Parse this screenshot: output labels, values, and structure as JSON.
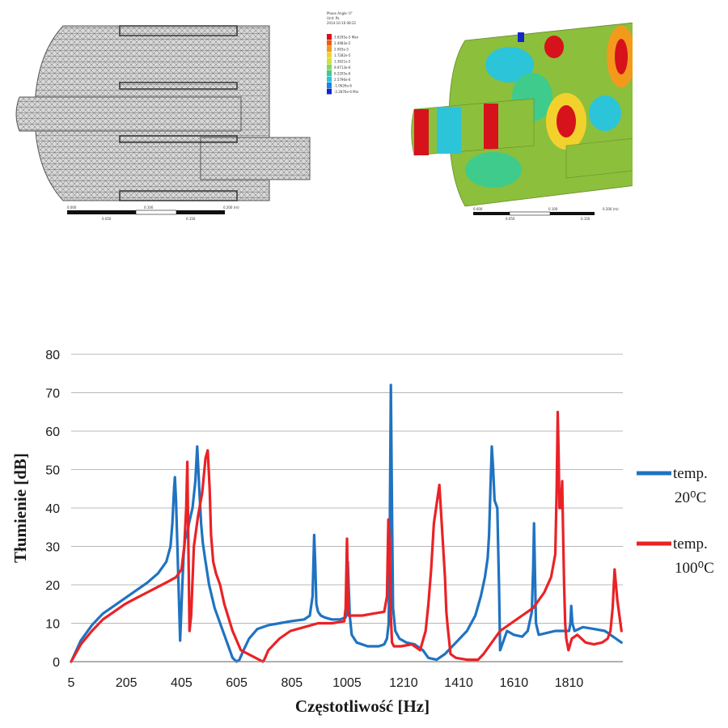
{
  "figure_mesh": {
    "scale_labels": [
      "0.000",
      "0.100",
      "0.200 (m)",
      "0.050",
      "0.150"
    ]
  },
  "figure_result": {
    "header_lines": [
      "Phase Angle: 0°",
      "Unit: Pa",
      "2014-10-16 08:22"
    ],
    "legend_levels": [
      "3.6295e-5 Max",
      "2.4983e-5",
      "2.093e-5",
      "1.7282e-5",
      "1.3621e-5",
      "9.9713e-6",
      "6.2205e-6",
      "2.5796e-6",
      "-1.0626e-6",
      "-2.2876e-6 Min"
    ],
    "legend_colors": [
      "#d6121b",
      "#ef5a16",
      "#f39a1c",
      "#f3d12c",
      "#cfe046",
      "#8fd455",
      "#3fcb8c",
      "#2cc4d8",
      "#1a86e0",
      "#1526c9"
    ],
    "scale_labels": [
      "0.000",
      "0.100",
      "0.200 (m)",
      "0.050",
      "0.150"
    ]
  },
  "chart_data": {
    "type": "line",
    "xlabel": "Częstotliwość [Hz]",
    "ylabel": "Tłumienie [dB]",
    "xlim": [
      5,
      2005
    ],
    "ylim": [
      0,
      80
    ],
    "x_ticks": [
      5,
      205,
      405,
      605,
      805,
      1005,
      1210,
      1410,
      1610,
      1810
    ],
    "y_ticks": [
      0,
      10,
      20,
      30,
      40,
      50,
      60,
      70,
      80
    ],
    "grid": "horizontal",
    "legend_position": "right",
    "series": [
      {
        "name": "temp. 20⁰C",
        "color": "#1f73c1",
        "x": [
          5,
          40,
          80,
          120,
          160,
          200,
          240,
          280,
          320,
          350,
          365,
          372,
          378,
          381,
          385,
          390,
          400,
          408,
          413,
          418,
          425,
          432,
          445,
          455,
          462,
          470,
          476,
          482,
          490,
          505,
          525,
          545,
          570,
          590,
          605,
          615,
          630,
          650,
          680,
          720,
          760,
          800,
          850,
          870,
          880,
          886,
          890,
          894,
          900,
          910,
          925,
          950,
          980,
          1000,
          1005,
          1008,
          1011,
          1015,
          1022,
          1040,
          1080,
          1120,
          1140,
          1150,
          1156,
          1160,
          1164,
          1168,
          1172,
          1180,
          1195,
          1220,
          1250,
          1280,
          1300,
          1330,
          1360,
          1400,
          1440,
          1470,
          1490,
          1505,
          1515,
          1520,
          1525,
          1530,
          1535,
          1540,
          1550,
          1556,
          1560,
          1570,
          1585,
          1610,
          1640,
          1660,
          1675,
          1680,
          1683,
          1686,
          1690,
          1700,
          1730,
          1760,
          1790,
          1810,
          1815,
          1818,
          1822,
          1830,
          1860,
          1900,
          1940,
          1960,
          2000
        ],
        "y": [
          0,
          5.5,
          9.5,
          12.5,
          14.5,
          16.5,
          18.5,
          20.5,
          23,
          26,
          30,
          36,
          45,
          48,
          42,
          30,
          5.5,
          20,
          28,
          32,
          33,
          36,
          40,
          47,
          56,
          44,
          36,
          31,
          27,
          20,
          14,
          10,
          5,
          1,
          0,
          0.5,
          3,
          6,
          8.5,
          9.5,
          10,
          10.5,
          11,
          12,
          17,
          33,
          25,
          15,
          13,
          12,
          11.5,
          11,
          11,
          11.5,
          14,
          26,
          20,
          12,
          7,
          5,
          4,
          4,
          4.5,
          6,
          10,
          35,
          72,
          40,
          14,
          8,
          6,
          5,
          4.5,
          3,
          1,
          0.5,
          2,
          5,
          8,
          12,
          17,
          22,
          27,
          33,
          45,
          56,
          50,
          42,
          40,
          20,
          3,
          5,
          8,
          7,
          6.5,
          8,
          13,
          25,
          36,
          25,
          10,
          7,
          7.5,
          8,
          8,
          8,
          10,
          14.5,
          10,
          8,
          9,
          8.5,
          8,
          7,
          5
        ]
      },
      {
        "name": "temp. 100⁰C",
        "color": "#ea2226",
        "x": [
          5,
          40,
          80,
          120,
          160,
          200,
          240,
          280,
          320,
          360,
          385,
          405,
          415,
          422,
          426,
          430,
          434,
          440,
          450,
          465,
          480,
          492,
          500,
          507,
          512,
          520,
          530,
          545,
          560,
          590,
          620,
          660,
          700,
          705,
          720,
          760,
          800,
          850,
          900,
          950,
          995,
          1000,
          1005,
          1008,
          1010,
          1016,
          1025,
          1060,
          1100,
          1140,
          1150,
          1155,
          1160,
          1164,
          1168,
          1175,
          1200,
          1240,
          1270,
          1290,
          1300,
          1310,
          1320,
          1340,
          1360,
          1365,
          1370,
          1376,
          1380,
          1400,
          1440,
          1480,
          1500,
          1520,
          1540,
          1560,
          1600,
          1640,
          1680,
          1720,
          1745,
          1760,
          1765,
          1769,
          1772,
          1775,
          1780,
          1785,
          1788,
          1792,
          1796,
          1800,
          1808,
          1820,
          1840,
          1870,
          1900,
          1930,
          1950,
          1960,
          1968,
          1975,
          1985,
          2000
        ],
        "y": [
          0,
          4.5,
          8,
          11,
          13,
          15,
          16.5,
          18,
          19.5,
          21,
          22,
          24,
          30,
          40,
          52,
          30,
          8,
          12,
          30,
          38,
          44,
          53,
          55,
          45,
          33,
          26,
          23,
          20,
          15,
          8,
          3,
          1.5,
          0,
          0.5,
          3,
          6,
          8,
          9,
          10,
          10,
          10.5,
          14,
          32,
          20,
          12,
          12,
          12,
          12,
          12.5,
          13,
          17,
          37,
          30,
          12,
          5,
          4,
          4,
          4.5,
          3,
          8,
          15,
          24,
          36,
          46,
          22,
          13,
          9,
          5,
          2,
          1,
          0.5,
          0.5,
          2,
          4,
          6,
          8,
          10,
          12,
          14,
          18,
          22,
          28,
          45,
          65,
          55,
          40,
          40,
          47,
          35,
          20,
          10,
          6,
          3,
          6,
          7,
          5,
          4.5,
          5,
          6,
          8,
          14,
          24,
          16,
          8
        ]
      }
    ]
  }
}
